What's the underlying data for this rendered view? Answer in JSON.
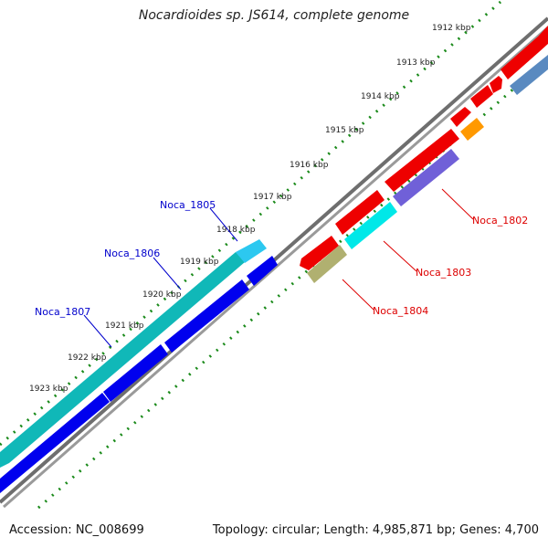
{
  "title": "Nocardioides sp. JS614, complete genome",
  "footer": {
    "accession": "Accession: NC_008699",
    "summary": "Topology: circular; Length: 4,985,871 bp; Genes: 4,700"
  },
  "kbp_labels": [
    "1912 kbp",
    "1913 kbp",
    "1914 kbp",
    "1915 kbp",
    "1916 kbp",
    "1917 kbp",
    "1918 kbp",
    "1919 kbp",
    "1920 kbp",
    "1921 kbp",
    "1922 kbp",
    "1923 kbp"
  ],
  "gene_labels": [
    {
      "name": "Noca_1802",
      "color": "#dd0000"
    },
    {
      "name": "Noca_1803",
      "color": "#dd0000"
    },
    {
      "name": "Noca_1804",
      "color": "#dd0000"
    },
    {
      "name": "Noca_1805",
      "color": "#0000cc"
    },
    {
      "name": "Noca_1806",
      "color": "#0000cc"
    },
    {
      "name": "Noca_1807",
      "color": "#0000cc"
    }
  ],
  "colors": {
    "backbone": "#7a7a7a",
    "ticks": "#1a8a1a",
    "red_genes": "#ee0000",
    "purple_gene": "#7060d8",
    "orange_gene": "#ff9900",
    "cyan_gene": "#00e8e8",
    "olive_gene": "#b0b070",
    "steel_gene": "#5a8ac0",
    "teal_genes": "#10b8b8",
    "blue_genes": "#0000ee"
  }
}
